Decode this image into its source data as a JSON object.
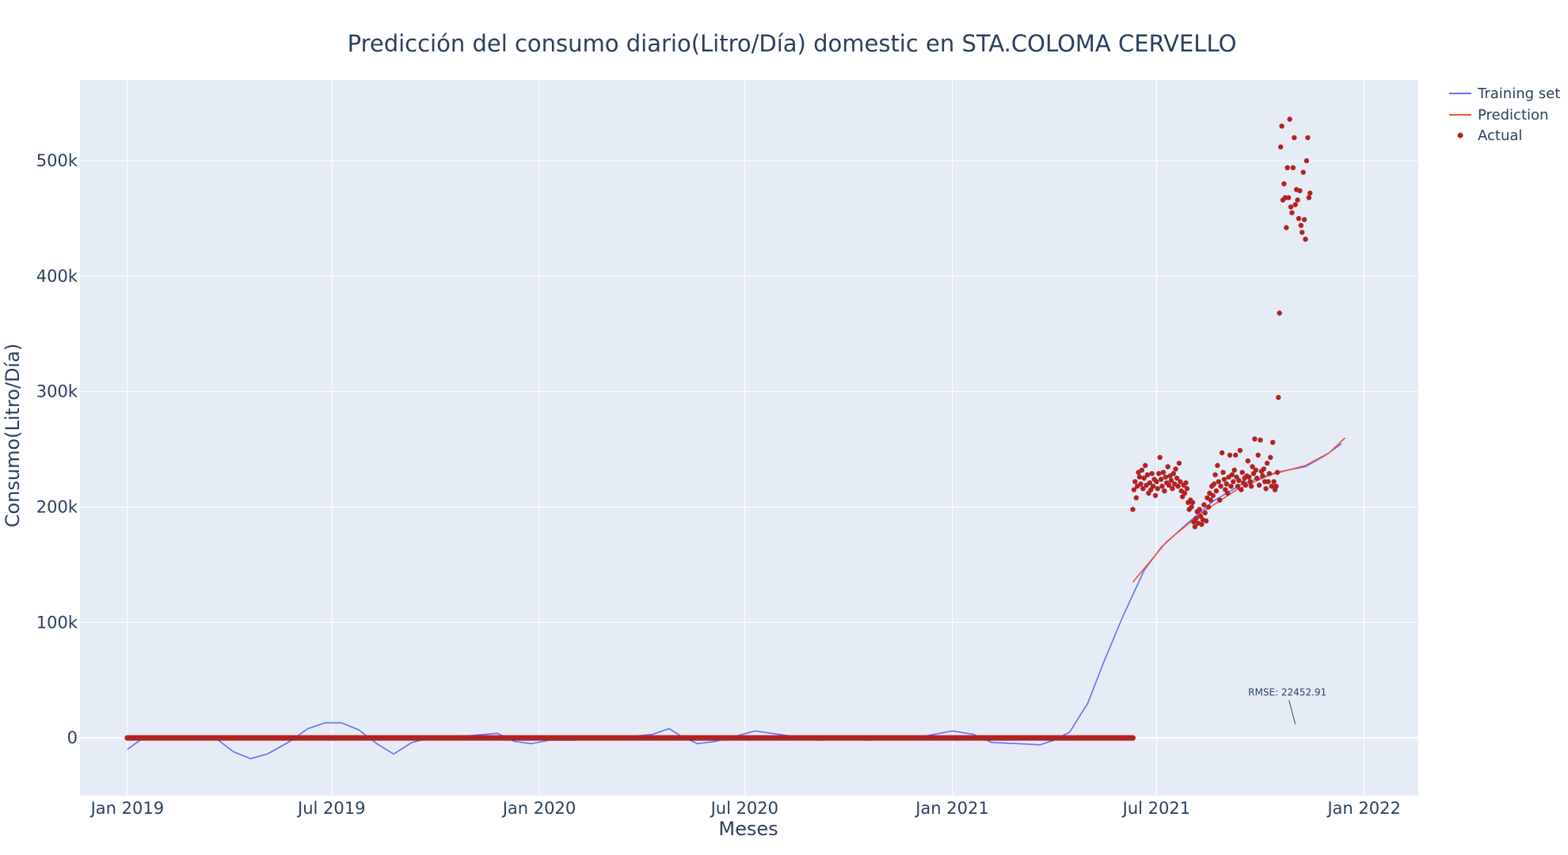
{
  "chart_data": {
    "type": "line",
    "title": "Predicción del consumo diario(Litro/Día) domestic en STA.COLOMA CERVELLO",
    "xlabel": "Meses",
    "ylabel": "Consumo(Litro/Día)",
    "x_axis_type": "date",
    "xlim": [
      "2018-11-20",
      "2022-02-18"
    ],
    "ylim": [
      -50000,
      570000
    ],
    "x_ticks": [
      {
        "date": "2019-01-01",
        "label": "Jan 2019"
      },
      {
        "date": "2019-07-01",
        "label": "Jul 2019"
      },
      {
        "date": "2020-01-01",
        "label": "Jan 2020"
      },
      {
        "date": "2020-07-01",
        "label": "Jul 2020"
      },
      {
        "date": "2021-01-01",
        "label": "Jan 2021"
      },
      {
        "date": "2021-07-01",
        "label": "Jul 2021"
      },
      {
        "date": "2022-01-01",
        "label": "Jan 2022"
      }
    ],
    "y_ticks": [
      {
        "value": 0,
        "label": "0"
      },
      {
        "value": 100000,
        "label": "100k"
      },
      {
        "value": 200000,
        "label": "200k"
      },
      {
        "value": 300000,
        "label": "300k"
      },
      {
        "value": 400000,
        "label": "400k"
      },
      {
        "value": 500000,
        "label": "500k"
      }
    ],
    "grid": true,
    "legend_position": "top-right",
    "series": [
      {
        "name": "Training set",
        "kind": "line",
        "color": "#636efa",
        "points": [
          [
            "2019-01-01",
            -10000
          ],
          [
            "2019-01-15",
            0
          ],
          [
            "2019-02-01",
            1000
          ],
          [
            "2019-03-01",
            1000
          ],
          [
            "2019-03-20",
            0
          ],
          [
            "2019-04-05",
            -12000
          ],
          [
            "2019-04-20",
            -18000
          ],
          [
            "2019-05-05",
            -14000
          ],
          [
            "2019-05-25",
            -3000
          ],
          [
            "2019-06-10",
            8000
          ],
          [
            "2019-06-25",
            13000
          ],
          [
            "2019-07-10",
            13000
          ],
          [
            "2019-07-25",
            7000
          ],
          [
            "2019-08-10",
            -5000
          ],
          [
            "2019-08-25",
            -14000
          ],
          [
            "2019-09-10",
            -4000
          ],
          [
            "2019-10-01",
            1000
          ],
          [
            "2019-11-01",
            2000
          ],
          [
            "2019-11-25",
            4000
          ],
          [
            "2019-12-10",
            -3000
          ],
          [
            "2019-12-25",
            -5000
          ],
          [
            "2020-01-10",
            -2000
          ],
          [
            "2020-02-01",
            -2000
          ],
          [
            "2020-02-20",
            1000
          ],
          [
            "2020-03-20",
            1000
          ],
          [
            "2020-04-10",
            3000
          ],
          [
            "2020-04-25",
            8000
          ],
          [
            "2020-05-05",
            2000
          ],
          [
            "2020-05-20",
            -5000
          ],
          [
            "2020-06-05",
            -3000
          ],
          [
            "2020-06-25",
            2000
          ],
          [
            "2020-07-10",
            6000
          ],
          [
            "2020-07-25",
            4000
          ],
          [
            "2020-08-15",
            1000
          ],
          [
            "2020-09-05",
            -2000
          ],
          [
            "2020-10-01",
            0
          ],
          [
            "2020-10-20",
            -2000
          ],
          [
            "2020-11-10",
            0
          ],
          [
            "2020-12-10",
            2000
          ],
          [
            "2021-01-01",
            6000
          ],
          [
            "2021-01-20",
            3000
          ],
          [
            "2021-02-05",
            -4000
          ],
          [
            "2021-03-01",
            -5000
          ],
          [
            "2021-03-20",
            -6000
          ],
          [
            "2021-04-01",
            -2000
          ],
          [
            "2021-04-15",
            5000
          ],
          [
            "2021-05-01",
            30000
          ],
          [
            "2021-05-15",
            65000
          ],
          [
            "2021-06-01",
            105000
          ],
          [
            "2021-06-20",
            145000
          ],
          [
            "2021-07-05",
            165000
          ],
          [
            "2021-07-25",
            183000
          ],
          [
            "2021-08-20",
            205000
          ],
          [
            "2021-09-15",
            220000
          ],
          [
            "2021-10-15",
            230000
          ],
          [
            "2021-11-10",
            235000
          ],
          [
            "2021-11-28",
            245000
          ],
          [
            "2021-12-12",
            255000
          ]
        ]
      },
      {
        "name": "Prediction",
        "kind": "line",
        "color": "#ef553b",
        "points": [
          [
            "2021-06-10",
            135000
          ],
          [
            "2021-07-10",
            170000
          ],
          [
            "2021-08-10",
            195000
          ],
          [
            "2021-09-10",
            215000
          ],
          [
            "2021-10-10",
            228000
          ],
          [
            "2021-11-10",
            236000
          ],
          [
            "2021-12-01",
            247000
          ],
          [
            "2021-12-15",
            260000
          ]
        ]
      },
      {
        "name": "Actual",
        "kind": "markers",
        "color": "#b22222",
        "baseline_range": [
          "2019-01-01",
          "2021-06-10"
        ],
        "baseline_value": 0,
        "points": [
          [
            "2021-06-10",
            198000
          ],
          [
            "2021-06-11",
            215000
          ],
          [
            "2021-06-12",
            222000
          ],
          [
            "2021-06-13",
            208000
          ],
          [
            "2021-06-14",
            218000
          ],
          [
            "2021-06-15",
            230000
          ],
          [
            "2021-06-16",
            226000
          ],
          [
            "2021-06-17",
            220000
          ],
          [
            "2021-06-18",
            232000
          ],
          [
            "2021-06-19",
            216000
          ],
          [
            "2021-06-20",
            225000
          ],
          [
            "2021-06-21",
            236000
          ],
          [
            "2021-06-22",
            219000
          ],
          [
            "2021-06-23",
            228000
          ],
          [
            "2021-06-24",
            212000
          ],
          [
            "2021-06-25",
            221000
          ],
          [
            "2021-06-26",
            215000
          ],
          [
            "2021-06-27",
            229000
          ],
          [
            "2021-06-28",
            218000
          ],
          [
            "2021-06-29",
            224000
          ],
          [
            "2021-06-30",
            210000
          ],
          [
            "2021-07-01",
            222000
          ],
          [
            "2021-07-02",
            216000
          ],
          [
            "2021-07-03",
            229000
          ],
          [
            "2021-07-04",
            243000
          ],
          [
            "2021-07-05",
            224000
          ],
          [
            "2021-07-06",
            218000
          ],
          [
            "2021-07-07",
            230000
          ],
          [
            "2021-07-08",
            214000
          ],
          [
            "2021-07-09",
            226000
          ],
          [
            "2021-07-10",
            221000
          ],
          [
            "2021-07-11",
            235000
          ],
          [
            "2021-07-12",
            219000
          ],
          [
            "2021-07-13",
            227000
          ],
          [
            "2021-07-14",
            223000
          ],
          [
            "2021-07-15",
            216000
          ],
          [
            "2021-07-16",
            229000
          ],
          [
            "2021-07-17",
            220000
          ],
          [
            "2021-07-18",
            233000
          ],
          [
            "2021-07-19",
            225000
          ],
          [
            "2021-07-20",
            218000
          ],
          [
            "2021-07-21",
            238000
          ],
          [
            "2021-07-22",
            222000
          ],
          [
            "2021-07-23",
            214000
          ],
          [
            "2021-07-24",
            209000
          ],
          [
            "2021-07-25",
            219000
          ],
          [
            "2021-07-26",
            212000
          ],
          [
            "2021-07-27",
            221000
          ],
          [
            "2021-07-28",
            216000
          ],
          [
            "2021-07-29",
            204000
          ],
          [
            "2021-07-30",
            198000
          ],
          [
            "2021-07-31",
            206000
          ],
          [
            "2021-08-01",
            200000
          ],
          [
            "2021-08-02",
            204000
          ],
          [
            "2021-08-03",
            187000
          ],
          [
            "2021-08-04",
            183000
          ],
          [
            "2021-08-05",
            190000
          ],
          [
            "2021-08-06",
            196000
          ],
          [
            "2021-08-07",
            186000
          ],
          [
            "2021-08-08",
            198000
          ],
          [
            "2021-08-09",
            192000
          ],
          [
            "2021-08-10",
            185000
          ],
          [
            "2021-08-11",
            189000
          ],
          [
            "2021-08-12",
            202000
          ],
          [
            "2021-08-13",
            195000
          ],
          [
            "2021-08-14",
            188000
          ],
          [
            "2021-08-15",
            208000
          ],
          [
            "2021-08-16",
            200000
          ],
          [
            "2021-08-17",
            212000
          ],
          [
            "2021-08-18",
            206000
          ],
          [
            "2021-08-19",
            218000
          ],
          [
            "2021-08-20",
            210000
          ],
          [
            "2021-08-21",
            220000
          ],
          [
            "2021-08-22",
            228000
          ],
          [
            "2021-08-23",
            214000
          ],
          [
            "2021-08-24",
            236000
          ],
          [
            "2021-08-25",
            222000
          ],
          [
            "2021-08-26",
            206000
          ],
          [
            "2021-08-27",
            218000
          ],
          [
            "2021-08-28",
            247000
          ],
          [
            "2021-08-29",
            230000
          ],
          [
            "2021-08-30",
            224000
          ],
          [
            "2021-08-31",
            215000
          ],
          [
            "2021-09-01",
            220000
          ],
          [
            "2021-09-02",
            212000
          ],
          [
            "2021-09-03",
            226000
          ],
          [
            "2021-09-04",
            245000
          ],
          [
            "2021-09-05",
            218000
          ],
          [
            "2021-09-06",
            228000
          ],
          [
            "2021-09-07",
            222000
          ],
          [
            "2021-09-08",
            232000
          ],
          [
            "2021-09-09",
            245000
          ],
          [
            "2021-09-10",
            226000
          ],
          [
            "2021-09-11",
            218000
          ],
          [
            "2021-09-12",
            223000
          ],
          [
            "2021-09-13",
            249000
          ],
          [
            "2021-09-14",
            215000
          ],
          [
            "2021-09-15",
            230000
          ],
          [
            "2021-09-16",
            221000
          ],
          [
            "2021-09-17",
            225000
          ],
          [
            "2021-09-18",
            219000
          ],
          [
            "2021-09-19",
            227000
          ],
          [
            "2021-09-20",
            240000
          ],
          [
            "2021-09-21",
            226000
          ],
          [
            "2021-09-22",
            222000
          ],
          [
            "2021-09-23",
            218000
          ],
          [
            "2021-09-24",
            235000
          ],
          [
            "2021-09-25",
            229000
          ],
          [
            "2021-09-26",
            259000
          ],
          [
            "2021-09-27",
            232000
          ],
          [
            "2021-09-28",
            225000
          ],
          [
            "2021-09-29",
            245000
          ],
          [
            "2021-09-30",
            219000
          ],
          [
            "2021-10-01",
            258000
          ],
          [
            "2021-10-02",
            231000
          ],
          [
            "2021-10-03",
            227000
          ],
          [
            "2021-10-04",
            233000
          ],
          [
            "2021-10-05",
            222000
          ],
          [
            "2021-10-06",
            216000
          ],
          [
            "2021-10-07",
            238000
          ],
          [
            "2021-10-08",
            222000
          ],
          [
            "2021-10-09",
            229000
          ],
          [
            "2021-10-10",
            243000
          ],
          [
            "2021-10-11",
            218000
          ],
          [
            "2021-10-12",
            256000
          ],
          [
            "2021-10-13",
            222000
          ],
          [
            "2021-10-14",
            215000
          ],
          [
            "2021-10-15",
            218000
          ],
          [
            "2021-10-16",
            230000
          ],
          [
            "2021-10-17",
            295000
          ],
          [
            "2021-10-18",
            368000
          ],
          [
            "2021-10-19",
            512000
          ],
          [
            "2021-10-20",
            530000
          ],
          [
            "2021-10-21",
            466000
          ],
          [
            "2021-10-22",
            480000
          ],
          [
            "2021-10-23",
            468000
          ],
          [
            "2021-10-24",
            442000
          ],
          [
            "2021-10-25",
            494000
          ],
          [
            "2021-10-26",
            468000
          ],
          [
            "2021-10-27",
            536000
          ],
          [
            "2021-10-28",
            460000
          ],
          [
            "2021-10-29",
            455000
          ],
          [
            "2021-10-30",
            494000
          ],
          [
            "2021-10-31",
            520000
          ],
          [
            "2021-11-01",
            462000
          ],
          [
            "2021-11-02",
            475000
          ],
          [
            "2021-11-03",
            466000
          ],
          [
            "2021-11-04",
            450000
          ],
          [
            "2021-11-05",
            474000
          ],
          [
            "2021-11-06",
            444000
          ],
          [
            "2021-11-07",
            438000
          ],
          [
            "2021-11-08",
            490000
          ],
          [
            "2021-11-09",
            449000
          ],
          [
            "2021-11-10",
            432000
          ],
          [
            "2021-11-11",
            500000
          ],
          [
            "2021-11-12",
            520000
          ],
          [
            "2021-11-13",
            468000
          ],
          [
            "2021-11-14",
            472000
          ]
        ]
      }
    ],
    "legend": [
      "Training set",
      "Prediction",
      "Actual"
    ],
    "annotations": [
      {
        "text": "RMSE: 22452.91",
        "x": "2021-11-01",
        "y": 12000,
        "arrow": true
      }
    ]
  }
}
